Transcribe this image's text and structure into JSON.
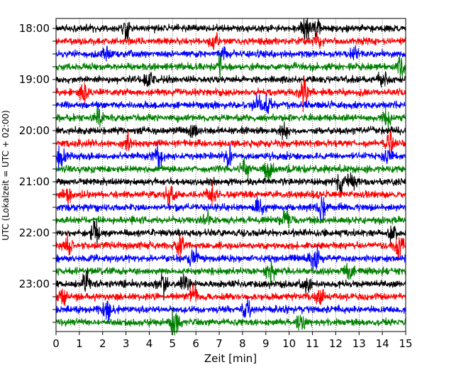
{
  "chart_data": {
    "type": "line",
    "title": "",
    "xlabel": "Zeit  [min]",
    "ylabel": "UTC (Lokalzeit = UTC + 02:00)",
    "xlim": [
      0,
      15
    ],
    "x_ticks": [
      "0",
      "1",
      "2",
      "3",
      "4",
      "5",
      "6",
      "7",
      "8",
      "9",
      "10",
      "11",
      "12",
      "13",
      "14",
      "15"
    ],
    "y_tick_labels": [
      "18:00",
      "19:00",
      "20:00",
      "21:00",
      "22:00",
      "23:00"
    ],
    "grid": "vertical dotted lines at each minute",
    "row_interval_minutes": 15,
    "rows": [
      {
        "start": "18:00",
        "color": "#000000",
        "events": [
          {
            "t": 3.0,
            "a": 1.2
          },
          {
            "t": 10.7,
            "a": 1.5
          },
          {
            "t": 11.2,
            "a": 0.8
          }
        ]
      },
      {
        "start": "18:15",
        "color": "#ff0000",
        "events": [
          {
            "t": 6.8,
            "a": 1.0
          },
          {
            "t": 11.2,
            "a": 0.9
          }
        ]
      },
      {
        "start": "18:30",
        "color": "#0000ff",
        "events": [
          {
            "t": 2.2,
            "a": 0.9
          },
          {
            "t": 7.2,
            "a": 0.8
          },
          {
            "t": 12.8,
            "a": 0.7
          }
        ]
      },
      {
        "start": "18:45",
        "color": "#008000",
        "events": [
          {
            "t": 7.0,
            "a": 0.8
          },
          {
            "t": 14.8,
            "a": 1.0
          }
        ]
      },
      {
        "start": "19:00",
        "color": "#000000",
        "events": [
          {
            "t": 3.9,
            "a": 0.8
          },
          {
            "t": 14.0,
            "a": 0.7
          }
        ]
      },
      {
        "start": "19:15",
        "color": "#ff0000",
        "events": [
          {
            "t": 1.2,
            "a": 0.8
          },
          {
            "t": 10.6,
            "a": 1.8
          }
        ]
      },
      {
        "start": "19:30",
        "color": "#0000ff",
        "events": [
          {
            "t": 9.0,
            "a": 1.3
          },
          {
            "t": 8.6,
            "a": 0.9
          }
        ]
      },
      {
        "start": "19:45",
        "color": "#008000",
        "events": [
          {
            "t": 1.8,
            "a": 0.9
          },
          {
            "t": 14.2,
            "a": 0.9
          }
        ]
      },
      {
        "start": "20:00",
        "color": "#000000",
        "events": [
          {
            "t": 5.9,
            "a": 1.3
          },
          {
            "t": 9.8,
            "a": 0.7
          }
        ]
      },
      {
        "start": "20:15",
        "color": "#ff0000",
        "events": [
          {
            "t": 3.1,
            "a": 1.3
          },
          {
            "t": 14.3,
            "a": 0.9
          }
        ]
      },
      {
        "start": "20:30",
        "color": "#0000ff",
        "events": [
          {
            "t": 0.2,
            "a": 1.3
          },
          {
            "t": 4.4,
            "a": 1.1
          },
          {
            "t": 7.4,
            "a": 1.0
          },
          {
            "t": 14.2,
            "a": 1.0
          }
        ]
      },
      {
        "start": "20:45",
        "color": "#008000",
        "events": [
          {
            "t": 8.1,
            "a": 1.0
          },
          {
            "t": 9.1,
            "a": 1.1
          }
        ]
      },
      {
        "start": "21:00",
        "color": "#000000",
        "events": [
          {
            "t": 12.2,
            "a": 1.3
          },
          {
            "t": 12.7,
            "a": 0.8
          }
        ]
      },
      {
        "start": "21:15",
        "color": "#ff0000",
        "events": [
          {
            "t": 0.5,
            "a": 1.0
          },
          {
            "t": 4.9,
            "a": 1.1
          },
          {
            "t": 6.7,
            "a": 1.0
          }
        ]
      },
      {
        "start": "21:30",
        "color": "#0000ff",
        "events": [
          {
            "t": 11.4,
            "a": 1.5
          },
          {
            "t": 8.7,
            "a": 0.9
          }
        ]
      },
      {
        "start": "21:45",
        "color": "#008000",
        "events": [
          {
            "t": 9.8,
            "a": 1.4
          },
          {
            "t": 6.5,
            "a": 0.8
          }
        ]
      },
      {
        "start": "22:00",
        "color": "#000000",
        "events": [
          {
            "t": 1.7,
            "a": 1.2
          },
          {
            "t": 14.4,
            "a": 0.9
          }
        ]
      },
      {
        "start": "22:15",
        "color": "#ff0000",
        "events": [
          {
            "t": 0.5,
            "a": 1.1
          },
          {
            "t": 5.3,
            "a": 1.1
          },
          {
            "t": 14.7,
            "a": 1.1
          }
        ]
      },
      {
        "start": "22:30",
        "color": "#0000ff",
        "events": [
          {
            "t": 11.1,
            "a": 1.4
          },
          {
            "t": 5.9,
            "a": 0.9
          }
        ]
      },
      {
        "start": "22:45",
        "color": "#008000",
        "events": [
          {
            "t": 9.2,
            "a": 1.0
          },
          {
            "t": 12.6,
            "a": 0.9
          }
        ]
      },
      {
        "start": "23:00",
        "color": "#000000",
        "events": [
          {
            "t": 1.3,
            "a": 1.2
          },
          {
            "t": 4.6,
            "a": 1.1
          },
          {
            "t": 5.5,
            "a": 1.0
          },
          {
            "t": 10.7,
            "a": 1.0
          }
        ]
      },
      {
        "start": "23:15",
        "color": "#ff0000",
        "events": [
          {
            "t": 5.9,
            "a": 1.3
          },
          {
            "t": 0.3,
            "a": 0.8
          },
          {
            "t": 11.3,
            "a": 0.8
          }
        ]
      },
      {
        "start": "23:30",
        "color": "#0000ff",
        "events": [
          {
            "t": 2.2,
            "a": 1.1
          },
          {
            "t": 8.2,
            "a": 1.0
          }
        ]
      },
      {
        "start": "23:45",
        "color": "#008000",
        "events": [
          {
            "t": 5.1,
            "a": 1.8
          },
          {
            "t": 10.5,
            "a": 0.8
          }
        ]
      }
    ],
    "series_colors": [
      "#000000",
      "#ff0000",
      "#0000ff",
      "#008000"
    ]
  }
}
